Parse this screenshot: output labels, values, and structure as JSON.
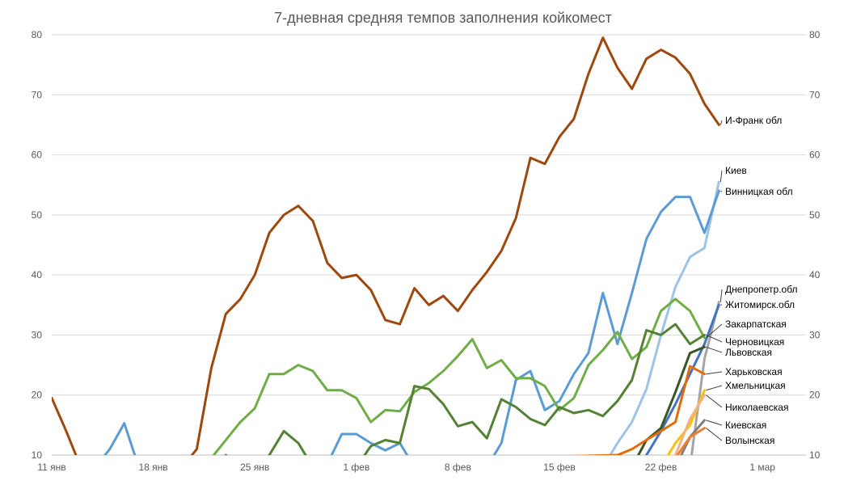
{
  "chart_data": {
    "type": "line",
    "title": "7-дневная средняя темпов заполнения койкомест",
    "xlabel": "",
    "ylabel": "",
    "x_start": "2021-01-11",
    "x_end": "2021-03-04",
    "x_ticks": [
      {
        "date": "2021-01-11",
        "label": "11 янв"
      },
      {
        "date": "2021-01-18",
        "label": "18 янв"
      },
      {
        "date": "2021-01-25",
        "label": "25 янв"
      },
      {
        "date": "2021-02-01",
        "label": "1 фев"
      },
      {
        "date": "2021-02-08",
        "label": "8 фев"
      },
      {
        "date": "2021-02-15",
        "label": "15 фев"
      },
      {
        "date": "2021-02-22",
        "label": "22 фев"
      },
      {
        "date": "2021-03-01",
        "label": "1 мар"
      }
    ],
    "ylim": [
      10,
      80
    ],
    "y_ticks": [
      "10",
      "20",
      "30",
      "40",
      "50",
      "60",
      "70",
      "80"
    ],
    "grid": true,
    "series": [
      {
        "name": "И-Франк обл",
        "color": "#9E480E",
        "points": [
          [
            "2021-01-11",
            19.5
          ],
          [
            "2021-01-12",
            14.0
          ],
          [
            "2021-01-13",
            8.0
          ],
          [
            "2021-01-20",
            8.0
          ],
          [
            "2021-01-21",
            11.0
          ],
          [
            "2021-01-22",
            24.5
          ],
          [
            "2021-01-23",
            33.5
          ],
          [
            "2021-01-24",
            36.0
          ],
          [
            "2021-01-25",
            40.0
          ],
          [
            "2021-01-26",
            47.0
          ],
          [
            "2021-01-27",
            50.0
          ],
          [
            "2021-01-28",
            51.5
          ],
          [
            "2021-01-29",
            49.0
          ],
          [
            "2021-01-30",
            42.0
          ],
          [
            "2021-01-31",
            39.5
          ],
          [
            "2021-02-01",
            40.0
          ],
          [
            "2021-02-02",
            37.5
          ],
          [
            "2021-02-03",
            32.5
          ],
          [
            "2021-02-04",
            31.8
          ],
          [
            "2021-02-05",
            37.8
          ],
          [
            "2021-02-06",
            35.0
          ],
          [
            "2021-02-07",
            36.5
          ],
          [
            "2021-02-08",
            34.0
          ],
          [
            "2021-02-09",
            37.5
          ],
          [
            "2021-02-10",
            40.5
          ],
          [
            "2021-02-11",
            44.0
          ],
          [
            "2021-02-12",
            49.5
          ],
          [
            "2021-02-13",
            59.5
          ],
          [
            "2021-02-14",
            58.5
          ],
          [
            "2021-02-15",
            63.0
          ],
          [
            "2021-02-16",
            66.0
          ],
          [
            "2021-02-17",
            73.5
          ],
          [
            "2021-02-18",
            79.5
          ],
          [
            "2021-02-19",
            74.5
          ],
          [
            "2021-02-20",
            71.0
          ],
          [
            "2021-02-21",
            76.0
          ],
          [
            "2021-02-22",
            77.5
          ],
          [
            "2021-02-23",
            76.2
          ],
          [
            "2021-02-24",
            73.5
          ],
          [
            "2021-02-25",
            68.5
          ],
          [
            "2021-02-26",
            65.0
          ]
        ]
      },
      {
        "name": "Киев",
        "color": "#9DC3E6",
        "points": [
          [
            "2021-02-18",
            8.0
          ],
          [
            "2021-02-19",
            12.0
          ],
          [
            "2021-02-20",
            15.5
          ],
          [
            "2021-02-21",
            21.0
          ],
          [
            "2021-02-22",
            30.0
          ],
          [
            "2021-02-23",
            38.0
          ],
          [
            "2021-02-24",
            43.0
          ],
          [
            "2021-02-25",
            44.5
          ],
          [
            "2021-02-26",
            55.5
          ]
        ]
      },
      {
        "name": "Винницкая обл",
        "color": "#5B9BD5",
        "points": [
          [
            "2021-01-14",
            8.0
          ],
          [
            "2021-01-15",
            11.0
          ],
          [
            "2021-01-16",
            15.3
          ],
          [
            "2021-01-17",
            8.0
          ],
          [
            "2021-01-28",
            8.0
          ],
          [
            "2021-01-29",
            9.0
          ],
          [
            "2021-01-30",
            8.5
          ],
          [
            "2021-01-31",
            13.5
          ],
          [
            "2021-02-01",
            13.5
          ],
          [
            "2021-02-02",
            12.0
          ],
          [
            "2021-02-03",
            10.8
          ],
          [
            "2021-02-04",
            12.0
          ],
          [
            "2021-02-05",
            8.0
          ],
          [
            "2021-02-10",
            8.0
          ],
          [
            "2021-02-11",
            12.0
          ],
          [
            "2021-02-12",
            22.5
          ],
          [
            "2021-02-13",
            24.0
          ],
          [
            "2021-02-14",
            17.5
          ],
          [
            "2021-02-15",
            19.0
          ],
          [
            "2021-02-16",
            23.5
          ],
          [
            "2021-02-17",
            27.0
          ],
          [
            "2021-02-18",
            37.0
          ],
          [
            "2021-02-19",
            28.5
          ],
          [
            "2021-02-20",
            37.0
          ],
          [
            "2021-02-21",
            46.0
          ],
          [
            "2021-02-22",
            50.5
          ],
          [
            "2021-02-23",
            53.0
          ],
          [
            "2021-02-24",
            53.0
          ],
          [
            "2021-02-25",
            47.0
          ],
          [
            "2021-02-26",
            54.0
          ]
        ]
      },
      {
        "name": "Днепропетр.обл",
        "color": "#A5A5A5",
        "points": [
          [
            "2021-02-24",
            8.0
          ],
          [
            "2021-02-25",
            26.0
          ],
          [
            "2021-02-26",
            35.5
          ]
        ]
      },
      {
        "name": "Житомирск.обл",
        "color": "#4472C4",
        "points": [
          [
            "2021-02-20",
            8.0
          ],
          [
            "2021-02-21",
            10.0
          ],
          [
            "2021-02-22",
            14.0
          ],
          [
            "2021-02-23",
            18.5
          ],
          [
            "2021-02-24",
            23.5
          ],
          [
            "2021-02-25",
            28.5
          ],
          [
            "2021-02-26",
            35.0
          ]
        ]
      },
      {
        "name": "Закарпатская",
        "color": "#70AD47",
        "points": [
          [
            "2021-01-21",
            8.0
          ],
          [
            "2021-01-22",
            9.5
          ],
          [
            "2021-01-23",
            12.5
          ],
          [
            "2021-01-24",
            15.5
          ],
          [
            "2021-01-25",
            17.8
          ],
          [
            "2021-01-26",
            23.5
          ],
          [
            "2021-01-27",
            23.5
          ],
          [
            "2021-01-28",
            25.0
          ],
          [
            "2021-01-29",
            24.0
          ],
          [
            "2021-01-30",
            20.8
          ],
          [
            "2021-01-31",
            20.8
          ],
          [
            "2021-02-01",
            19.5
          ],
          [
            "2021-02-02",
            15.5
          ],
          [
            "2021-02-03",
            17.5
          ],
          [
            "2021-02-04",
            17.3
          ],
          [
            "2021-02-05",
            20.5
          ],
          [
            "2021-02-06",
            22.0
          ],
          [
            "2021-02-07",
            24.0
          ],
          [
            "2021-02-08",
            26.5
          ],
          [
            "2021-02-09",
            29.3
          ],
          [
            "2021-02-10",
            24.5
          ],
          [
            "2021-02-11",
            25.8
          ],
          [
            "2021-02-12",
            22.8
          ],
          [
            "2021-02-13",
            22.8
          ],
          [
            "2021-02-14",
            21.5
          ],
          [
            "2021-02-15",
            17.5
          ],
          [
            "2021-02-16",
            19.5
          ],
          [
            "2021-02-17",
            25.0
          ],
          [
            "2021-02-18",
            27.5
          ],
          [
            "2021-02-19",
            30.5
          ],
          [
            "2021-02-20",
            26.0
          ],
          [
            "2021-02-21",
            28.0
          ],
          [
            "2021-02-22",
            34.0
          ],
          [
            "2021-02-23",
            36.0
          ],
          [
            "2021-02-24",
            34.0
          ],
          [
            "2021-02-25",
            29.5
          ]
        ]
      },
      {
        "name": "Черновицкая",
        "color": "#548235",
        "points": [
          [
            "2021-01-22",
            8.0
          ],
          [
            "2021-01-23",
            10.0
          ],
          [
            "2021-01-24",
            8.0
          ],
          [
            "2021-01-25",
            8.0
          ],
          [
            "2021-01-26",
            10.0
          ],
          [
            "2021-01-27",
            14.0
          ],
          [
            "2021-01-28",
            12.0
          ],
          [
            "2021-01-29",
            8.0
          ],
          [
            "2021-01-31",
            8.0
          ],
          [
            "2021-02-01",
            8.0
          ],
          [
            "2021-02-02",
            11.5
          ],
          [
            "2021-02-03",
            12.5
          ],
          [
            "2021-02-04",
            12.0
          ],
          [
            "2021-02-05",
            21.5
          ],
          [
            "2021-02-06",
            21.0
          ],
          [
            "2021-02-07",
            18.5
          ],
          [
            "2021-02-08",
            14.8
          ],
          [
            "2021-02-09",
            15.5
          ],
          [
            "2021-02-10",
            12.8
          ],
          [
            "2021-02-11",
            19.3
          ],
          [
            "2021-02-12",
            18.0
          ],
          [
            "2021-02-13",
            16.0
          ],
          [
            "2021-02-14",
            15.0
          ],
          [
            "2021-02-15",
            18.0
          ],
          [
            "2021-02-16",
            17.0
          ],
          [
            "2021-02-17",
            17.5
          ],
          [
            "2021-02-18",
            16.5
          ],
          [
            "2021-02-19",
            19.0
          ],
          [
            "2021-02-20",
            22.5
          ],
          [
            "2021-02-21",
            30.8
          ],
          [
            "2021-02-22",
            30.0
          ],
          [
            "2021-02-23",
            31.8
          ],
          [
            "2021-02-24",
            28.5
          ],
          [
            "2021-02-25",
            30.0
          ]
        ]
      },
      {
        "name": "Львовская",
        "color": "#375623",
        "points": [
          [
            "2021-02-20",
            8.0
          ],
          [
            "2021-02-21",
            12.5
          ],
          [
            "2021-02-22",
            14.5
          ],
          [
            "2021-02-23",
            20.5
          ],
          [
            "2021-02-24",
            27.0
          ],
          [
            "2021-02-25",
            28.0
          ]
        ]
      },
      {
        "name": "Харьковская",
        "color": "#E36C09",
        "points": [
          [
            "2021-01-18",
            8.0
          ],
          [
            "2021-02-19",
            10.0
          ],
          [
            "2021-02-20",
            11.0
          ],
          [
            "2021-02-21",
            12.5
          ],
          [
            "2021-02-22",
            14.0
          ],
          [
            "2021-02-23",
            15.5
          ],
          [
            "2021-02-24",
            24.8
          ],
          [
            "2021-02-25",
            23.5
          ]
        ]
      },
      {
        "name": "Хмельницкая",
        "color": "#FFC000",
        "points": [
          [
            "2021-02-22",
            8.0
          ],
          [
            "2021-02-23",
            12.0
          ],
          [
            "2021-02-24",
            15.0
          ],
          [
            "2021-02-25",
            20.8
          ]
        ]
      },
      {
        "name": "Николаевская",
        "color": "#F4B183",
        "points": [
          [
            "2021-02-22",
            8.0
          ],
          [
            "2021-02-23",
            10.0
          ],
          [
            "2021-02-24",
            16.0
          ],
          [
            "2021-02-25",
            20.0
          ]
        ]
      },
      {
        "name": "Киевская",
        "color": "#7F7F7F",
        "points": [
          [
            "2021-02-23",
            8.0
          ],
          [
            "2021-02-24",
            13.0
          ],
          [
            "2021-02-25",
            15.8
          ]
        ]
      },
      {
        "name": "Волынская",
        "color": "#ED7D31",
        "points": [
          [
            "2021-02-22",
            8.0
          ],
          [
            "2021-02-23",
            9.5
          ],
          [
            "2021-02-24",
            13.0
          ],
          [
            "2021-02-25",
            14.5
          ]
        ]
      }
    ]
  }
}
